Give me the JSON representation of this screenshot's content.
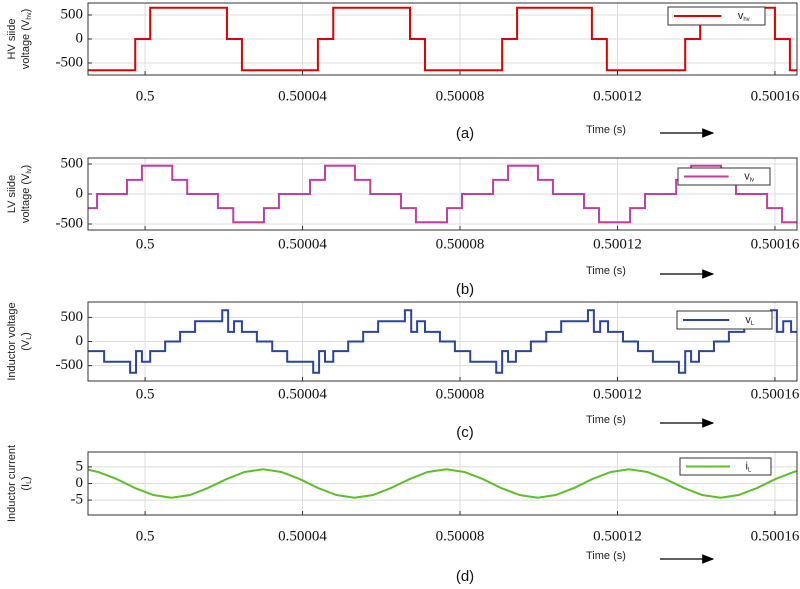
{
  "chart_data": [
    {
      "type": "line",
      "drawstyle": "steps-post",
      "caption": "(a)",
      "xlabel": "Time (s)",
      "ylabel": [
        "HV siide",
        "voltage (V"
      ],
      "ylabel_sub": "hv",
      "ylabel_end": ")",
      "xlim": [
        0.4999855,
        0.5001656
      ],
      "xticks": [
        0.5,
        0.50004,
        0.50008,
        0.50012,
        0.50016
      ],
      "ylim": [
        -750,
        750
      ],
      "yticks": [
        500,
        0,
        -500
      ],
      "grid": true,
      "legend": "upper right",
      "series": [
        {
          "name": "v",
          "name_sub": "hv",
          "color": "#e00000",
          "x": [
            0.4999855,
            0.4999975,
            0.5000013,
            0.5000208,
            0.5000246,
            0.5000439,
            0.5000478,
            0.5000673,
            0.5000711,
            0.5000907,
            0.5000945,
            0.5001135,
            0.5001173,
            0.5001372,
            0.500141,
            0.50016,
            0.5001638,
            0.5001656
          ],
          "values": [
            -650,
            0,
            650,
            0,
            -650,
            0,
            650,
            0,
            -650,
            0,
            650,
            0,
            -650,
            0,
            650,
            0,
            -650,
            -650
          ]
        }
      ]
    },
    {
      "type": "line",
      "drawstyle": "steps-post",
      "caption": "(b)",
      "xlabel": "Time (s)",
      "ylabel": [
        "LV siide",
        "voltage (V"
      ],
      "ylabel_sub": "lv",
      "ylabel_end": ")",
      "xlim": [
        0.4999855,
        0.5001656
      ],
      "xticks": [
        0.5,
        0.50004,
        0.50008,
        0.50012,
        0.50016
      ],
      "ylim": [
        -600,
        600
      ],
      "yticks": [
        500,
        0,
        -500
      ],
      "grid": true,
      "legend": "upper right",
      "series": [
        {
          "name": "v",
          "name_sub": "lv",
          "color": "#c03fa0",
          "x": [
            0.4999855,
            0.4999878,
            0.4999954,
            0.4999992,
            0.5000069,
            0.5000107,
            0.5000185,
            0.5000224,
            0.5000302,
            0.500034,
            0.5000419,
            0.5000457,
            0.5000533,
            0.5000572,
            0.500065,
            0.5000688,
            0.5000767,
            0.5000805,
            0.5000884,
            0.5000922,
            0.5000998,
            0.5001036,
            0.5001115,
            0.5001153,
            0.5001232,
            0.500127,
            0.5001349,
            0.5001387,
            0.5001463,
            0.5001501,
            0.500158,
            0.5001618,
            0.5001656
          ],
          "values": [
            -235,
            0,
            235,
            470,
            235,
            0,
            -235,
            -470,
            -235,
            0,
            235,
            470,
            235,
            0,
            -235,
            -470,
            -235,
            0,
            235,
            470,
            235,
            0,
            -235,
            -470,
            -235,
            0,
            235,
            470,
            235,
            0,
            -235,
            -470,
            -470
          ]
        }
      ]
    },
    {
      "type": "line",
      "drawstyle": "steps-post",
      "caption": "(c)",
      "xlabel": "Time (s)",
      "ylabel": [
        "Inductor voltage",
        "(V"
      ],
      "ylabel_sub": "L",
      "ylabel_end": ")",
      "xlim": [
        0.4999855,
        0.5001656
      ],
      "xticks": [
        0.5,
        0.50004,
        0.50008,
        0.50012,
        0.50016
      ],
      "ylim": [
        -820,
        820
      ],
      "yticks": [
        500,
        0,
        -500
      ],
      "grid": true,
      "legend": "upper right",
      "series": [
        {
          "name": "v",
          "name_sub": "L",
          "color": "#2a44a0",
          "x": [
            0.4999855,
            0.4999896,
            0.4999962,
            0.4999977,
            0.4999992,
            0.5000013,
            0.5000051,
            0.5000089,
            0.5000127,
            0.5000196,
            0.5000211,
            0.5000226,
            0.5000246,
            0.5000284,
            0.5000323,
            0.5000361,
            0.5000427,
            0.5000442,
            0.5000457,
            0.5000478,
            0.5000516,
            0.5000554,
            0.5000592,
            0.500066,
            0.5000676,
            0.5000691,
            0.5000711,
            0.5000749,
            0.5000787,
            0.5000826,
            0.5000892,
            0.5000907,
            0.5000922,
            0.5000942,
            0.500098,
            0.5001019,
            0.5001057,
            0.5001125,
            0.500114,
            0.5001156,
            0.5001176,
            0.5001214,
            0.5001252,
            0.500129,
            0.5001356,
            0.5001372,
            0.5001387,
            0.5001407,
            0.5001445,
            0.5001483,
            0.5001522,
            0.500159,
            0.5001605,
            0.5001621,
            0.5001641,
            0.5001656
          ],
          "values": [
            -200,
            -420,
            -650,
            -200,
            -420,
            -200,
            0,
            200,
            420,
            650,
            200,
            420,
            200,
            0,
            -200,
            -420,
            -650,
            -200,
            -420,
            -200,
            0,
            200,
            420,
            650,
            200,
            420,
            200,
            0,
            -200,
            -420,
            -650,
            -200,
            -420,
            -200,
            0,
            200,
            420,
            650,
            200,
            420,
            200,
            0,
            -200,
            -420,
            -650,
            -200,
            -420,
            -200,
            0,
            200,
            420,
            650,
            200,
            420,
            200,
            200
          ]
        }
      ]
    },
    {
      "type": "line",
      "caption": "(d)",
      "xlabel": "Time (s)",
      "ylabel": [
        "Inductor current",
        "(I"
      ],
      "ylabel_sub": "L",
      "ylabel_end": ")",
      "xlim": [
        0.4999855,
        0.5001656
      ],
      "xticks": [
        0.5,
        0.50004,
        0.50008,
        0.50012,
        0.50016
      ],
      "ylim": [
        -9.5,
        9.5
      ],
      "yticks": [
        5,
        0,
        -5
      ],
      "grid": true,
      "legend": "upper right",
      "series": [
        {
          "name": "i",
          "name_sub": "L",
          "color": "#5cbf2a",
          "x": [
            0.4999855,
            0.4999881,
            0.4999928,
            0.4999974,
            0.5000021,
            0.5000067,
            0.5000114,
            0.500016,
            0.5000207,
            0.5000253,
            0.50003,
            0.5000346,
            0.5000393,
            0.5000439,
            0.5000486,
            0.5000532,
            0.5000579,
            0.5000625,
            0.5000672,
            0.5000718,
            0.5000765,
            0.5000811,
            0.5000858,
            0.5000904,
            0.5000951,
            0.5000997,
            0.5001043,
            0.500109,
            0.5001136,
            0.5001183,
            0.5001229,
            0.5001276,
            0.5001322,
            0.5001369,
            0.5001415,
            0.5001462,
            0.5001508,
            0.5001555,
            0.5001601,
            0.5001648,
            0.5001656
          ],
          "values": [
            4.14,
            3.48,
            1.33,
            -1.33,
            -3.48,
            -4.3,
            -3.48,
            -1.33,
            1.33,
            3.48,
            4.3,
            3.48,
            1.33,
            -1.33,
            -3.48,
            -4.3,
            -3.48,
            -1.33,
            1.33,
            3.48,
            4.3,
            3.48,
            1.33,
            -1.33,
            -3.48,
            -4.3,
            -3.48,
            -1.33,
            1.33,
            3.48,
            4.3,
            3.48,
            1.33,
            -1.33,
            -3.48,
            -4.3,
            -3.48,
            -1.33,
            1.33,
            3.48,
            3.74
          ]
        }
      ]
    }
  ]
}
